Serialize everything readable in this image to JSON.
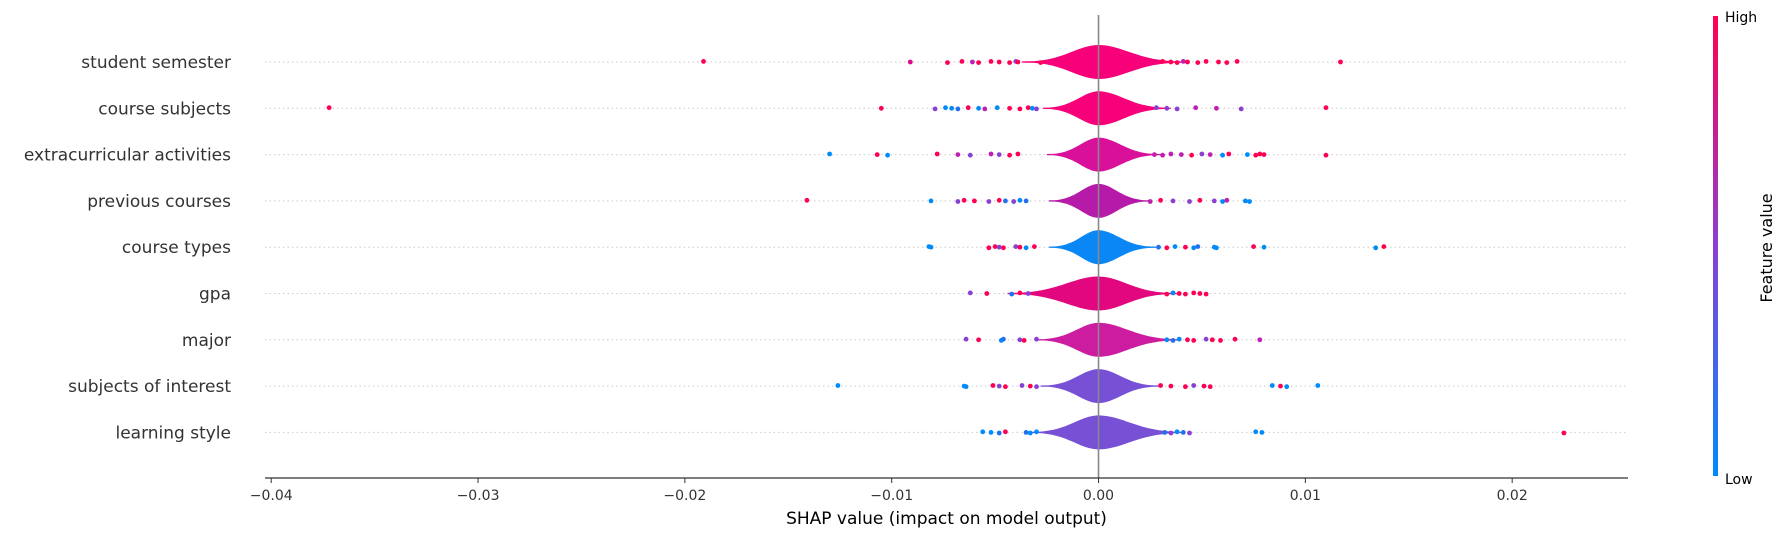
{
  "chart_data": {
    "type": "violin",
    "subtype": "shap-summary-violin",
    "xlabel": "SHAP value (impact on model output)",
    "xlim": [
      -0.0403,
      0.0256
    ],
    "xticks": [
      -0.04,
      -0.03,
      -0.02,
      -0.01,
      0.0,
      0.01,
      0.02
    ],
    "xtick_labels": [
      "−0.04",
      "−0.03",
      "−0.02",
      "−0.01",
      "0.00",
      "0.01",
      "0.02"
    ],
    "colorbar": {
      "label": "Feature value",
      "high_label": "High",
      "low_label": "Low",
      "high_color": "#ff0052",
      "low_color": "#008bfb"
    },
    "features": [
      {
        "name": "student semester",
        "violin_color": "#f7007a",
        "extent": [
          -0.0037,
          0.0042
        ],
        "points": [
          [
            -0.0191,
            "#ff0052"
          ],
          [
            -0.0091,
            "#e0088a"
          ],
          [
            -0.0073,
            "#ff0052"
          ],
          [
            -0.0066,
            "#ff0052"
          ],
          [
            -0.0061,
            "#c020b0"
          ],
          [
            -0.0058,
            "#ff0052"
          ],
          [
            -0.0052,
            "#ff0052"
          ],
          [
            -0.0048,
            "#ff0052"
          ],
          [
            -0.0043,
            "#ff0052"
          ],
          [
            -0.004,
            "#8a40d0"
          ],
          [
            -0.0039,
            "#ff0052"
          ],
          [
            -0.0028,
            "#ff0052"
          ],
          [
            0.0031,
            "#ff0052"
          ],
          [
            0.0035,
            "#ff0052"
          ],
          [
            0.0038,
            "#ff0052"
          ],
          [
            0.0041,
            "#c020b0"
          ],
          [
            0.0043,
            "#ff0052"
          ],
          [
            0.0048,
            "#ff0052"
          ],
          [
            0.0052,
            "#ff0052"
          ],
          [
            0.0058,
            "#ff0052"
          ],
          [
            0.0062,
            "#ff0052"
          ],
          [
            0.0067,
            "#ff0052"
          ],
          [
            0.0117,
            "#ff0052"
          ]
        ]
      },
      {
        "name": "course subjects",
        "violin_color": "#f7007a",
        "extent": [
          -0.0027,
          0.0035
        ],
        "points": [
          [
            -0.0372,
            "#ff0052"
          ],
          [
            -0.0105,
            "#ff0052"
          ],
          [
            -0.0079,
            "#8a40d0"
          ],
          [
            -0.0074,
            "#008bfb"
          ],
          [
            -0.0071,
            "#008bfb"
          ],
          [
            -0.0068,
            "#2070f0"
          ],
          [
            -0.0063,
            "#ff0052"
          ],
          [
            -0.0058,
            "#008bfb"
          ],
          [
            -0.0055,
            "#c020b0"
          ],
          [
            -0.0049,
            "#008bfb"
          ],
          [
            -0.0043,
            "#ff0052"
          ],
          [
            -0.0038,
            "#ff0052"
          ],
          [
            -0.0034,
            "#ff0052"
          ],
          [
            -0.0032,
            "#008bfb"
          ],
          [
            -0.003,
            "#8a40d0"
          ],
          [
            0.0028,
            "#8a40d0"
          ],
          [
            0.0033,
            "#8a40d0"
          ],
          [
            0.0038,
            "#8a40d0"
          ],
          [
            0.0047,
            "#c020b0"
          ],
          [
            0.0057,
            "#c020b0"
          ],
          [
            0.0069,
            "#8a40d0"
          ],
          [
            0.011,
            "#ff0052"
          ]
        ]
      },
      {
        "name": "extracurricular activities",
        "violin_color": "#d8109a",
        "extent": [
          -0.0025,
          0.003
        ],
        "points": [
          [
            -0.013,
            "#008bfb"
          ],
          [
            -0.0107,
            "#ff0052"
          ],
          [
            -0.0102,
            "#008bfb"
          ],
          [
            -0.0078,
            "#ff0052"
          ],
          [
            -0.0068,
            "#c020b0"
          ],
          [
            -0.0062,
            "#8a40d0"
          ],
          [
            -0.0052,
            "#c020b0"
          ],
          [
            -0.0048,
            "#8a40d0"
          ],
          [
            -0.0043,
            "#ff0052"
          ],
          [
            -0.0039,
            "#ff0052"
          ],
          [
            0.0027,
            "#c020b0"
          ],
          [
            0.0031,
            "#c020b0"
          ],
          [
            0.0035,
            "#c020b0"
          ],
          [
            0.004,
            "#c020b0"
          ],
          [
            0.0045,
            "#ff0052"
          ],
          [
            0.005,
            "#8a40d0"
          ],
          [
            0.0054,
            "#c020b0"
          ],
          [
            0.006,
            "#008bfb"
          ],
          [
            0.0063,
            "#ff0052"
          ],
          [
            0.0072,
            "#008bfb"
          ],
          [
            0.0076,
            "#ff0052"
          ],
          [
            0.0078,
            "#ff0052"
          ],
          [
            0.008,
            "#ff0052"
          ],
          [
            0.011,
            "#ff0052"
          ]
        ]
      },
      {
        "name": "previous courses",
        "violin_color": "#b51aa8",
        "extent": [
          -0.0024,
          0.0025
        ],
        "points": [
          [
            -0.0141,
            "#ff0052"
          ],
          [
            -0.0081,
            "#008bfb"
          ],
          [
            -0.0068,
            "#8a40d0"
          ],
          [
            -0.0065,
            "#ff0052"
          ],
          [
            -0.006,
            "#ff0052"
          ],
          [
            -0.0053,
            "#8a40d0"
          ],
          [
            -0.0048,
            "#ff0052"
          ],
          [
            -0.0045,
            "#2070f0"
          ],
          [
            -0.0041,
            "#8a40d0"
          ],
          [
            -0.0038,
            "#008bfb"
          ],
          [
            -0.0035,
            "#2070f0"
          ],
          [
            0.0025,
            "#c020b0"
          ],
          [
            0.003,
            "#ff0052"
          ],
          [
            0.0036,
            "#8a40d0"
          ],
          [
            0.0044,
            "#8a40d0"
          ],
          [
            0.0049,
            "#ff0052"
          ],
          [
            0.0056,
            "#8a40d0"
          ],
          [
            0.006,
            "#008bfb"
          ],
          [
            0.0062,
            "#c020b0"
          ],
          [
            0.0071,
            "#008bfb"
          ],
          [
            0.0073,
            "#008bfb"
          ]
        ]
      },
      {
        "name": "course types",
        "violin_color": "#0a87f5",
        "extent": [
          -0.0024,
          0.0028
        ],
        "points": [
          [
            -0.0082,
            "#008bfb"
          ],
          [
            -0.0081,
            "#008bfb"
          ],
          [
            -0.0053,
            "#ff0052"
          ],
          [
            -0.005,
            "#ff0052"
          ],
          [
            -0.0048,
            "#8a40d0"
          ],
          [
            -0.0046,
            "#ff0052"
          ],
          [
            -0.004,
            "#8a40d0"
          ],
          [
            -0.0038,
            "#ff0052"
          ],
          [
            -0.0035,
            "#008bfb"
          ],
          [
            -0.0031,
            "#ff0052"
          ],
          [
            0.0029,
            "#2070f0"
          ],
          [
            0.0033,
            "#ff0052"
          ],
          [
            0.0037,
            "#008bfb"
          ],
          [
            0.0042,
            "#ff0052"
          ],
          [
            0.0046,
            "#008bfb"
          ],
          [
            0.0048,
            "#2070f0"
          ],
          [
            0.0056,
            "#008bfb"
          ],
          [
            0.0057,
            "#008bfb"
          ],
          [
            0.0075,
            "#ff0052"
          ],
          [
            0.008,
            "#008bfb"
          ],
          [
            0.0134,
            "#008bfb"
          ],
          [
            0.0138,
            "#ff0052"
          ]
        ]
      },
      {
        "name": "gpa",
        "violin_color": "#e2067f",
        "extent": [
          -0.0044,
          0.0038
        ],
        "points": [
          [
            -0.0062,
            "#8a40d0"
          ],
          [
            -0.0054,
            "#ff0052"
          ],
          [
            -0.0042,
            "#2070f0"
          ],
          [
            -0.0038,
            "#ff0052"
          ],
          [
            -0.0034,
            "#8a40d0"
          ],
          [
            0.0033,
            "#ff0052"
          ],
          [
            0.0036,
            "#008bfb"
          ],
          [
            0.0039,
            "#ff0052"
          ],
          [
            0.0042,
            "#ff0052"
          ],
          [
            0.0046,
            "#ff0052"
          ],
          [
            0.0049,
            "#ff0052"
          ],
          [
            0.0052,
            "#ff0052"
          ]
        ]
      },
      {
        "name": "major",
        "violin_color": "#cc1da0",
        "extent": [
          -0.003,
          0.004
        ],
        "points": [
          [
            -0.0064,
            "#8a40d0"
          ],
          [
            -0.0058,
            "#ff0052"
          ],
          [
            -0.0047,
            "#008bfb"
          ],
          [
            -0.0046,
            "#2070f0"
          ],
          [
            -0.0038,
            "#8a40d0"
          ],
          [
            -0.0036,
            "#ff0052"
          ],
          [
            -0.003,
            "#8a40d0"
          ],
          [
            0.0033,
            "#008bfb"
          ],
          [
            0.0036,
            "#2070f0"
          ],
          [
            0.0039,
            "#008bfb"
          ],
          [
            0.0043,
            "#ff0052"
          ],
          [
            0.0046,
            "#ff0052"
          ],
          [
            0.0052,
            "#8a40d0"
          ],
          [
            0.0055,
            "#ff0052"
          ],
          [
            0.0059,
            "#ff0052"
          ],
          [
            0.0066,
            "#ff0052"
          ],
          [
            0.0078,
            "#c020b0"
          ]
        ]
      },
      {
        "name": "subjects of interest",
        "violin_color": "#7850d6",
        "extent": [
          -0.0028,
          0.003
        ],
        "points": [
          [
            -0.0126,
            "#008bfb"
          ],
          [
            -0.0065,
            "#008bfb"
          ],
          [
            -0.0064,
            "#008bfb"
          ],
          [
            -0.0051,
            "#ff0052"
          ],
          [
            -0.0048,
            "#8a40d0"
          ],
          [
            -0.0045,
            "#ff0052"
          ],
          [
            -0.0037,
            "#8a40d0"
          ],
          [
            -0.0033,
            "#ff0052"
          ],
          [
            -0.003,
            "#8a40d0"
          ],
          [
            0.003,
            "#ff0052"
          ],
          [
            0.0035,
            "#ff0052"
          ],
          [
            0.0042,
            "#ff0052"
          ],
          [
            0.0046,
            "#8a40d0"
          ],
          [
            0.0051,
            "#ff0052"
          ],
          [
            0.0054,
            "#ff0052"
          ],
          [
            0.0084,
            "#008bfb"
          ],
          [
            0.0088,
            "#ff0052"
          ],
          [
            0.0091,
            "#008bfb"
          ],
          [
            0.0106,
            "#008bfb"
          ]
        ]
      },
      {
        "name": "learning style",
        "violin_color": "#7850d6",
        "extent": [
          -0.0033,
          0.0042
        ],
        "points": [
          [
            -0.0056,
            "#008bfb"
          ],
          [
            -0.0052,
            "#008bfb"
          ],
          [
            -0.0048,
            "#2070f0"
          ],
          [
            -0.0045,
            "#ff0052"
          ],
          [
            -0.0035,
            "#2070f0"
          ],
          [
            -0.0033,
            "#008bfb"
          ],
          [
            -0.003,
            "#008bfb"
          ],
          [
            0.0032,
            "#2070f0"
          ],
          [
            0.0035,
            "#8a40d0"
          ],
          [
            0.0038,
            "#008bfb"
          ],
          [
            0.0041,
            "#2070f0"
          ],
          [
            0.0044,
            "#8a40d0"
          ],
          [
            0.0076,
            "#008bfb"
          ],
          [
            0.0079,
            "#008bfb"
          ],
          [
            0.0225,
            "#ff0052"
          ]
        ]
      }
    ]
  }
}
